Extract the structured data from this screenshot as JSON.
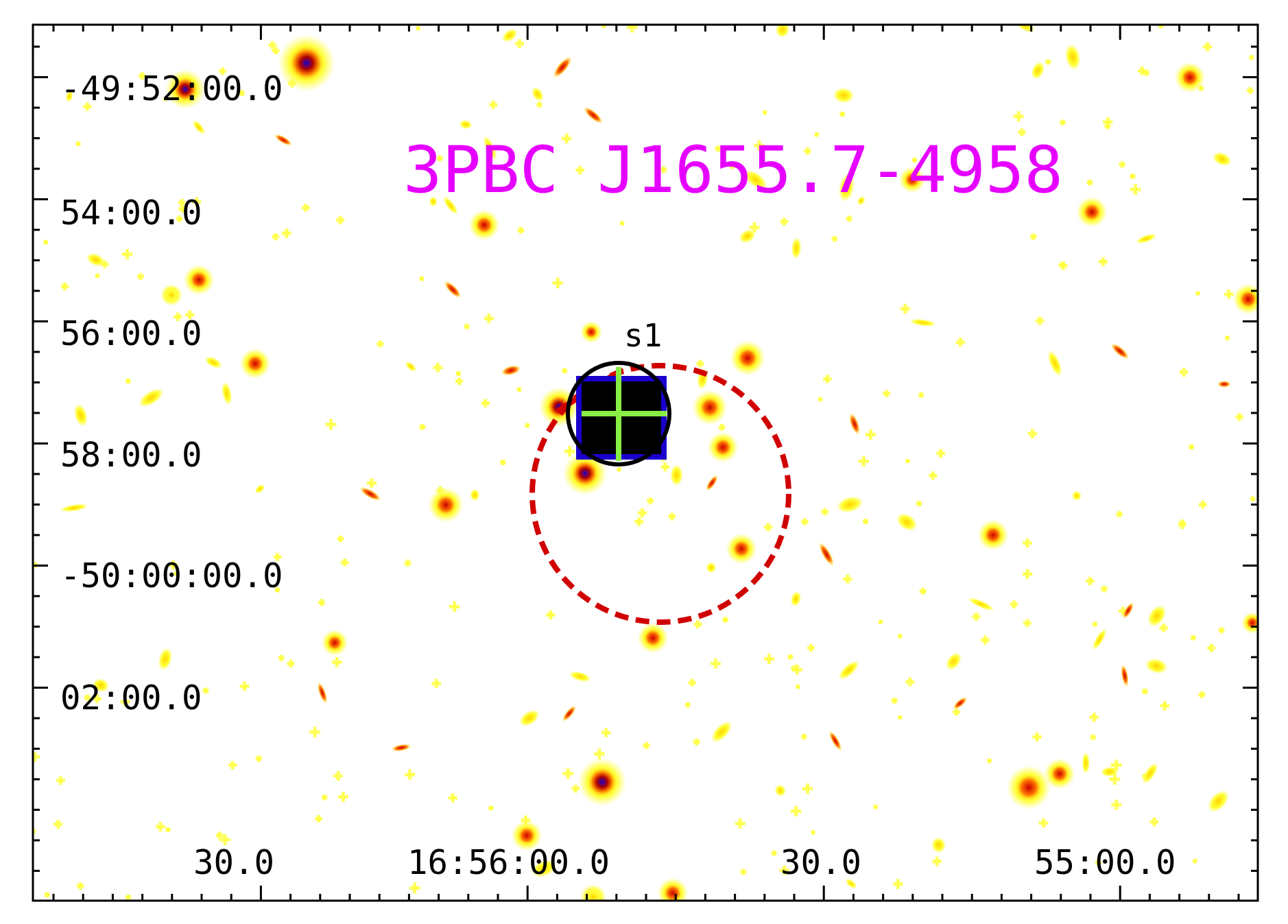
{
  "title": "3PBC J1655.7-4958",
  "title_color": "#e600ff",
  "dec_axis": {
    "ticks": [
      {
        "label": "-49:52:00.0"
      },
      {
        "label": "54:00.0"
      },
      {
        "label": "56:00.0"
      },
      {
        "label": "58:00.0"
      },
      {
        "label": "-50:00:00.0"
      },
      {
        "label": "02:00.0"
      }
    ]
  },
  "ra_axis": {
    "ticks": [
      {
        "label": "30.0"
      },
      {
        "label": "16:56:00.0"
      },
      {
        "label": "30.0"
      },
      {
        "label": "55:00.0"
      }
    ]
  },
  "source": {
    "label": "s1",
    "circle_color": "#000000",
    "cross_color": "#88ee44"
  },
  "error_circle": {
    "color": "#d10000",
    "style": "dashed"
  },
  "colormap": [
    "#ffff33",
    "#ff8800",
    "#cc0000",
    "#1a00cc",
    "#000000"
  ]
}
